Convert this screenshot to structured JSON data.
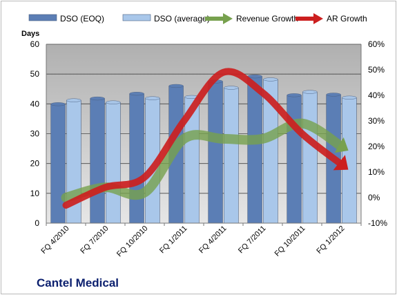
{
  "chart_data": {
    "type": "bar",
    "company": "Cantel Medical",
    "ylabel": "Days",
    "categories": [
      "FQ 4/2010",
      "FQ 7/2010",
      "FQ 10/2010",
      "FQ 1/2011",
      "FQ 4/2011",
      "FQ 7/2011",
      "FQ 10/2011",
      "FQ 1/2012"
    ],
    "ylim": [
      0,
      60
    ],
    "yticks": [
      0,
      10,
      20,
      30,
      40,
      50,
      60
    ],
    "y2lim": [
      -10,
      60
    ],
    "y2ticks": [
      -10,
      0,
      10,
      20,
      30,
      40,
      50,
      60
    ],
    "y2unit": "%",
    "series": [
      {
        "name": "DSO (EOQ)",
        "kind": "bar",
        "axis": "left",
        "color": "#5b7eb5",
        "values": [
          39.9,
          41.8,
          43.4,
          46.0,
          47.5,
          49.2,
          42.9,
          43.1
        ]
      },
      {
        "name": "DSO (average)",
        "kind": "bar",
        "axis": "left",
        "color": "#a9c7ea",
        "values": [
          41.2,
          40.5,
          41.9,
          42.3,
          45.4,
          48.2,
          44.0,
          42.1
        ]
      },
      {
        "name": "Revenue Growth",
        "kind": "arrow",
        "axis": "right",
        "color": "#77a14e",
        "values": [
          0,
          4,
          2,
          23,
          23,
          23,
          29,
          20
        ]
      },
      {
        "name": "AR Growth",
        "kind": "arrow",
        "axis": "right",
        "color": "#cc1f1f",
        "values": [
          -3,
          4,
          8,
          30,
          49,
          41,
          25,
          13
        ]
      }
    ],
    "grid": true,
    "legend": "top"
  }
}
